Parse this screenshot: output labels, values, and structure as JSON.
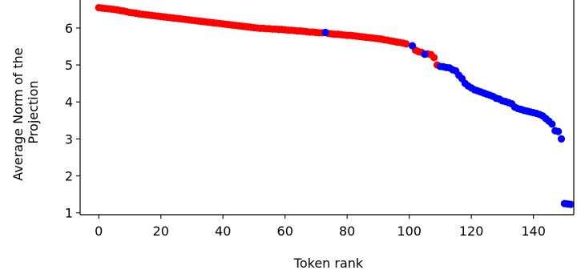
{
  "chart_data": {
    "type": "scatter",
    "title": "",
    "xlabel": "Token rank",
    "ylabel_lines": [
      "Average Norm of the",
      "Projection"
    ],
    "xlim": [
      -6,
      153
    ],
    "ylim": [
      0.95,
      6.8
    ],
    "xticks": [
      0,
      20,
      40,
      60,
      80,
      100,
      120,
      140
    ],
    "yticks": [
      1,
      2,
      3,
      4,
      5,
      6
    ],
    "grid": false,
    "legend": "none",
    "colors": {
      "red": "#ff0000",
      "blue": "#0000ff"
    },
    "series": [
      {
        "color": "#ff0000",
        "points": [
          [
            0,
            6.55
          ],
          [
            1,
            6.54
          ],
          [
            2,
            6.53
          ],
          [
            3,
            6.52
          ],
          [
            4,
            6.51
          ],
          [
            5,
            6.5
          ],
          [
            6,
            6.49
          ],
          [
            7,
            6.47
          ],
          [
            8,
            6.46
          ],
          [
            9,
            6.44
          ],
          [
            10,
            6.42
          ],
          [
            11,
            6.41
          ],
          [
            12,
            6.4
          ],
          [
            13,
            6.38
          ],
          [
            14,
            6.37
          ],
          [
            15,
            6.36
          ],
          [
            16,
            6.35
          ],
          [
            17,
            6.34
          ],
          [
            18,
            6.33
          ],
          [
            19,
            6.32
          ],
          [
            20,
            6.31
          ],
          [
            21,
            6.3
          ],
          [
            22,
            6.29
          ],
          [
            23,
            6.28
          ],
          [
            24,
            6.27
          ],
          [
            25,
            6.26
          ],
          [
            26,
            6.25
          ],
          [
            27,
            6.24
          ],
          [
            28,
            6.23
          ],
          [
            29,
            6.22
          ],
          [
            30,
            6.21
          ],
          [
            31,
            6.2
          ],
          [
            32,
            6.19
          ],
          [
            33,
            6.18
          ],
          [
            34,
            6.17
          ],
          [
            35,
            6.16
          ],
          [
            36,
            6.15
          ],
          [
            37,
            6.14
          ],
          [
            38,
            6.13
          ],
          [
            39,
            6.12
          ],
          [
            40,
            6.11
          ],
          [
            41,
            6.1
          ],
          [
            42,
            6.09
          ],
          [
            43,
            6.08
          ],
          [
            44,
            6.07
          ],
          [
            45,
            6.06
          ],
          [
            46,
            6.05
          ],
          [
            47,
            6.04
          ],
          [
            48,
            6.03
          ],
          [
            49,
            6.02
          ],
          [
            50,
            6.01
          ],
          [
            51,
            6.0
          ],
          [
            52,
            5.99
          ],
          [
            53,
            5.99
          ],
          [
            54,
            5.98
          ],
          [
            55,
            5.98
          ],
          [
            56,
            5.97
          ],
          [
            57,
            5.97
          ],
          [
            58,
            5.96
          ],
          [
            59,
            5.96
          ],
          [
            60,
            5.95
          ],
          [
            61,
            5.94
          ],
          [
            62,
            5.94
          ],
          [
            63,
            5.93
          ],
          [
            64,
            5.92
          ],
          [
            65,
            5.92
          ],
          [
            66,
            5.91
          ],
          [
            67,
            5.9
          ],
          [
            68,
            5.89
          ],
          [
            69,
            5.89
          ],
          [
            70,
            5.88
          ],
          [
            71,
            5.87
          ],
          [
            72,
            5.87
          ],
          [
            74,
            5.85
          ],
          [
            75,
            5.84
          ],
          [
            76,
            5.83
          ],
          [
            77,
            5.83
          ],
          [
            78,
            5.82
          ],
          [
            79,
            5.81
          ],
          [
            80,
            5.8
          ],
          [
            81,
            5.8
          ],
          [
            82,
            5.79
          ],
          [
            83,
            5.78
          ],
          [
            84,
            5.77
          ],
          [
            85,
            5.76
          ],
          [
            86,
            5.75
          ],
          [
            87,
            5.74
          ],
          [
            88,
            5.73
          ],
          [
            89,
            5.72
          ],
          [
            90,
            5.71
          ],
          [
            91,
            5.7
          ],
          [
            92,
            5.68
          ],
          [
            93,
            5.67
          ],
          [
            94,
            5.65
          ],
          [
            95,
            5.64
          ],
          [
            96,
            5.62
          ],
          [
            97,
            5.61
          ],
          [
            98,
            5.59
          ],
          [
            99,
            5.57
          ],
          [
            102,
            5.4
          ],
          [
            103,
            5.36
          ],
          [
            104,
            5.34
          ],
          [
            106,
            5.3
          ],
          [
            107,
            5.28
          ],
          [
            108,
            5.2
          ],
          [
            109,
            5.0
          ]
        ]
      },
      {
        "color": "#0000ff",
        "points": [
          [
            73,
            5.88
          ],
          [
            101,
            5.52
          ],
          [
            105,
            5.29
          ],
          [
            110,
            4.96
          ],
          [
            111,
            4.95
          ],
          [
            112,
            4.93
          ],
          [
            113,
            4.92
          ],
          [
            114,
            4.87
          ],
          [
            115,
            4.84
          ],
          [
            116,
            4.72
          ],
          [
            117,
            4.63
          ],
          [
            118,
            4.5
          ],
          [
            119,
            4.43
          ],
          [
            120,
            4.38
          ],
          [
            121,
            4.33
          ],
          [
            122,
            4.3
          ],
          [
            123,
            4.27
          ],
          [
            124,
            4.24
          ],
          [
            125,
            4.21
          ],
          [
            126,
            4.18
          ],
          [
            127,
            4.15
          ],
          [
            128,
            4.1
          ],
          [
            129,
            4.08
          ],
          [
            130,
            4.03
          ],
          [
            131,
            4.01
          ],
          [
            132,
            3.98
          ],
          [
            133,
            3.95
          ],
          [
            134,
            3.86
          ],
          [
            135,
            3.82
          ],
          [
            136,
            3.8
          ],
          [
            137,
            3.77
          ],
          [
            138,
            3.75
          ],
          [
            139,
            3.73
          ],
          [
            140,
            3.71
          ],
          [
            141,
            3.69
          ],
          [
            142,
            3.66
          ],
          [
            143,
            3.62
          ],
          [
            144,
            3.55
          ],
          [
            145,
            3.48
          ],
          [
            146,
            3.4
          ],
          [
            147,
            3.22
          ],
          [
            148,
            3.2
          ],
          [
            149,
            3.0
          ],
          [
            150,
            1.25
          ],
          [
            151,
            1.24
          ],
          [
            152,
            1.23
          ]
        ]
      }
    ]
  }
}
